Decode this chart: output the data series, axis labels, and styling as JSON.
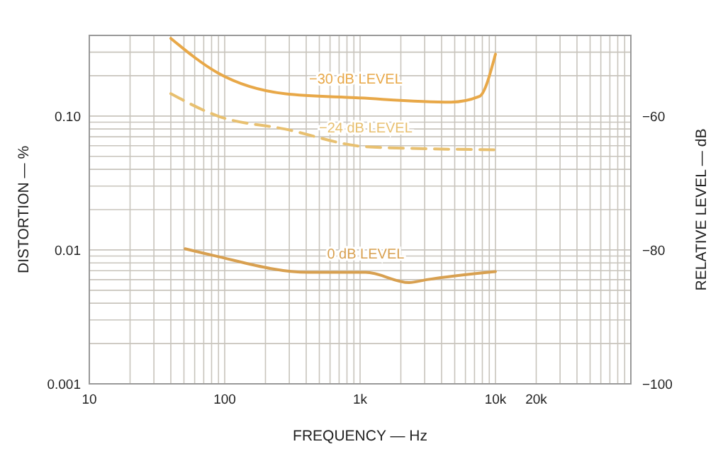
{
  "chart_data": {
    "type": "line",
    "xlabel": "FREQUENCY — Hz",
    "ylabel": "DISTORTION — %",
    "y2label": "RELATIVE LEVEL — dB",
    "log": "xy",
    "grid": true,
    "marker": "none",
    "xlim": [
      10,
      100000
    ],
    "xticks": [
      10,
      100,
      {
        "value": 1000,
        "label": "1k"
      },
      {
        "value": 10000,
        "label": "10k"
      },
      {
        "value": 20000,
        "label": "20k"
      }
    ],
    "ylim": [
      0.001,
      0.4
    ],
    "yticks": [
      {
        "value": 0.001,
        "label": "0.001"
      },
      {
        "value": 0.01,
        "label": "0.01"
      },
      {
        "value": 0.1,
        "label": "0.10"
      }
    ],
    "y2lim": [
      -100,
      -48
    ],
    "y2ticks": [
      {
        "value": -100,
        "label": "−100"
      },
      {
        "value": -80,
        "label": "−80"
      },
      {
        "value": -60,
        "label": "−60"
      }
    ],
    "series": [
      {
        "name": "−30 dB LEVEL",
        "color": "#e8a848",
        "line_style": "solid",
        "x": [
          40,
          89,
          277,
          929,
          4700,
          7600,
          10000
        ],
        "values": [
          0.38,
          0.21,
          0.147,
          0.137,
          0.127,
          0.14,
          0.29
        ]
      },
      {
        "name": "−24 dB LEVEL",
        "color": "#e8c070",
        "line_style": "dashed",
        "x": [
          40,
          89,
          277,
          1100,
          3100,
          10000
        ],
        "values": [
          0.147,
          0.1,
          0.08,
          0.059,
          0.057,
          0.056
        ]
      },
      {
        "name": "0 dB LEVEL",
        "color": "#d8a050",
        "line_style": "solid",
        "x": [
          51,
          82,
          417,
          1100,
          2300,
          3100,
          10000
        ],
        "values": [
          0.0102,
          0.0091,
          0.0068,
          0.0068,
          0.0057,
          0.006,
          0.0069
        ]
      }
    ]
  }
}
